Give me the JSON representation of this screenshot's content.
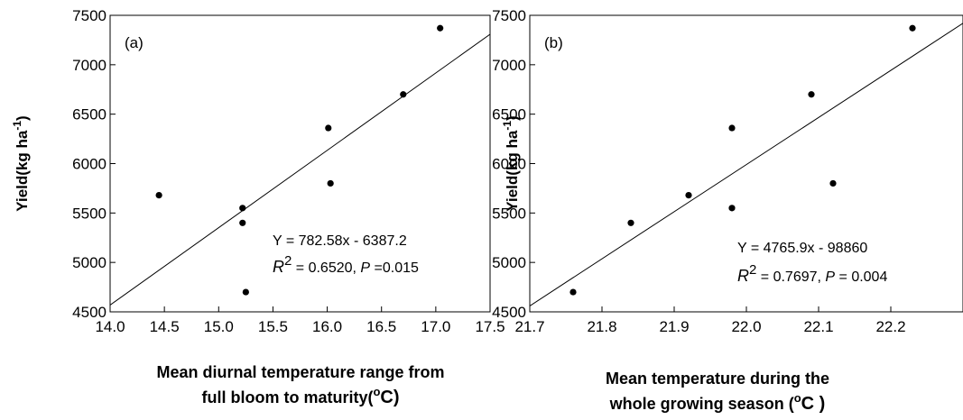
{
  "chart_data": [
    {
      "type": "scatter",
      "panel_label": "(a)",
      "xlabel_lines": [
        "Mean diurnal temperature range from",
        "full bloom to maturity("
      ],
      "xlabel_unit_sup": "o",
      "xlabel_unit_after": "C)",
      "ylabel_main": "Yield(kg ha",
      "ylabel_sup": "-1",
      "ylabel_close": ")",
      "xlim": [
        14.0,
        17.5
      ],
      "ylim": [
        4500,
        7500
      ],
      "xticks": [
        "14.0",
        "14.5",
        "15.0",
        "15.5",
        "16.0",
        "16.5",
        "17.0",
        "17.5"
      ],
      "yticks": [
        "4500",
        "5000",
        "5500",
        "6000",
        "6500",
        "7000",
        "7500"
      ],
      "x": [
        14.45,
        15.22,
        15.22,
        15.25,
        16.01,
        16.03,
        16.7,
        17.04
      ],
      "y": [
        5680,
        5550,
        5400,
        4700,
        6360,
        5800,
        6700,
        7370
      ],
      "fit": {
        "slope": 782.58,
        "intercept": -6387.2,
        "x_range": [
          14.0,
          17.5
        ]
      },
      "equation": "Y = 782.58x - 6387.2",
      "r2_symbol": "R",
      "r2_sup": "2",
      "r2_value": " = 0.6520, ",
      "p_symbol": "P",
      "p_value": " =0.015",
      "grid": false
    },
    {
      "type": "scatter",
      "panel_label": "(b)",
      "xlabel_lines": [
        "Mean temperature during the",
        "whole growing season ("
      ],
      "xlabel_unit_sup": "o",
      "xlabel_unit_after": "C )",
      "ylabel_main": "Yield(kg ha",
      "ylabel_sup": "-1",
      "ylabel_close": ")",
      "xlim": [
        21.7,
        22.3
      ],
      "ylim": [
        4500,
        7500
      ],
      "xticks": [
        "21.7",
        "21.8",
        "21.9",
        "22.0",
        "22.1",
        "22.2"
      ],
      "yticks": [
        "4500",
        "5000",
        "5500",
        "6000",
        "6500",
        "7000",
        "7500"
      ],
      "x": [
        21.76,
        21.84,
        21.92,
        21.98,
        21.98,
        22.09,
        22.12,
        22.23
      ],
      "y": [
        4700,
        5400,
        5680,
        5550,
        6360,
        6700,
        5800,
        7370
      ],
      "fit": {
        "slope": 4765.9,
        "intercept": -98860,
        "x_range": [
          21.7,
          22.3
        ]
      },
      "equation": "Y = 4765.9x - 98860",
      "r2_symbol": "R",
      "r2_sup": "2",
      "r2_value": " = 0.7697, ",
      "p_symbol": "P",
      "p_value": " = 0.004",
      "grid": false
    }
  ]
}
